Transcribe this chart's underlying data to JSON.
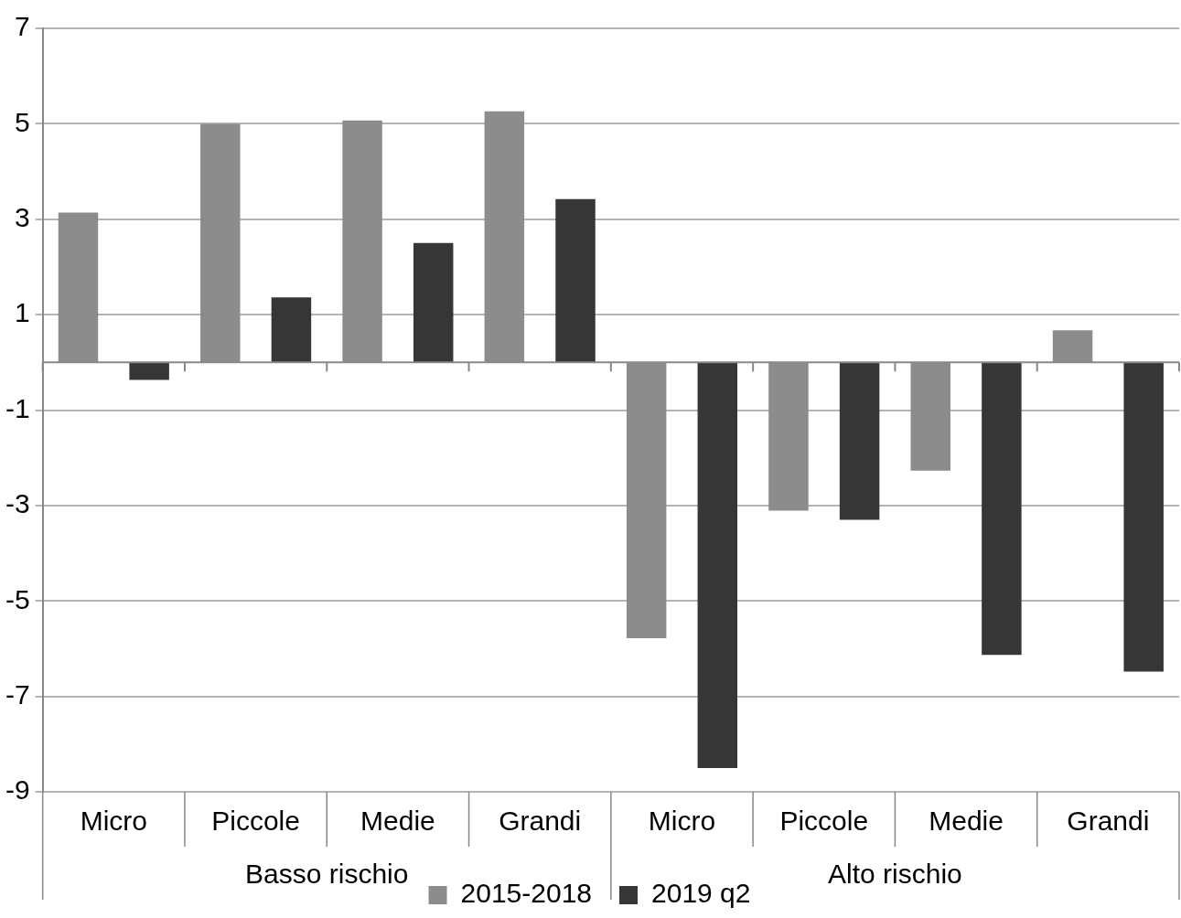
{
  "chart_data": {
    "type": "bar",
    "categories": [
      "Micro",
      "Piccole",
      "Medie",
      "Grandi",
      "Micro",
      "Piccole",
      "Medie",
      "Grandi"
    ],
    "series": [
      {
        "name": "2015-2018",
        "color": "#8c8c8c",
        "values": [
          3.14,
          5.0,
          5.07,
          5.26,
          -5.78,
          -3.11,
          -2.27,
          0.67
        ]
      },
      {
        "name": "2019 q2",
        "color": "#363636",
        "values": [
          -0.37,
          1.36,
          2.5,
          3.42,
          -8.5,
          -3.3,
          -6.13,
          -6.48
        ]
      }
    ],
    "annotations": [
      "Basso rischio",
      "Alto rischio"
    ],
    "ylim": [
      -9,
      7
    ],
    "yticks": [
      -9,
      -7,
      -5,
      -3,
      -1,
      1,
      3,
      5,
      7
    ],
    "grid": "y",
    "legend": "bottom"
  }
}
